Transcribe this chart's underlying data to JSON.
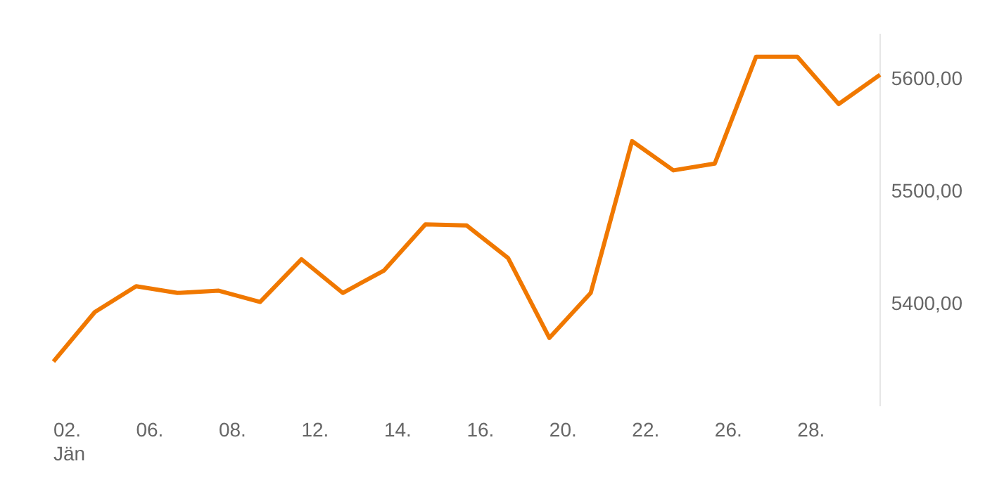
{
  "chart_data": {
    "type": "line",
    "categories": [
      "02. Jän",
      null,
      "06.",
      null,
      "08.",
      null,
      "12.",
      null,
      "14.",
      null,
      "16.",
      null,
      "20.",
      null,
      "22.",
      null,
      "26.",
      null,
      "28.",
      null,
      null
    ],
    "series": [
      {
        "color": "#f07800",
        "values": [
          5349,
          5393,
          5416,
          5410,
          5412,
          5402,
          5440,
          5410,
          5430,
          5471,
          5470,
          5441,
          5370,
          5410,
          5545,
          5519,
          5525,
          5620,
          5620,
          5578,
          5604
        ]
      }
    ],
    "ylim": [
      5310,
      5640
    ],
    "yticks": [
      {
        "value": 5400,
        "label": "5400,00"
      },
      {
        "value": 5500,
        "label": "5500,00"
      },
      {
        "value": 5600,
        "label": "5600,00"
      }
    ],
    "grid": false,
    "legend": false,
    "marker": "none",
    "line_style": "solid"
  }
}
